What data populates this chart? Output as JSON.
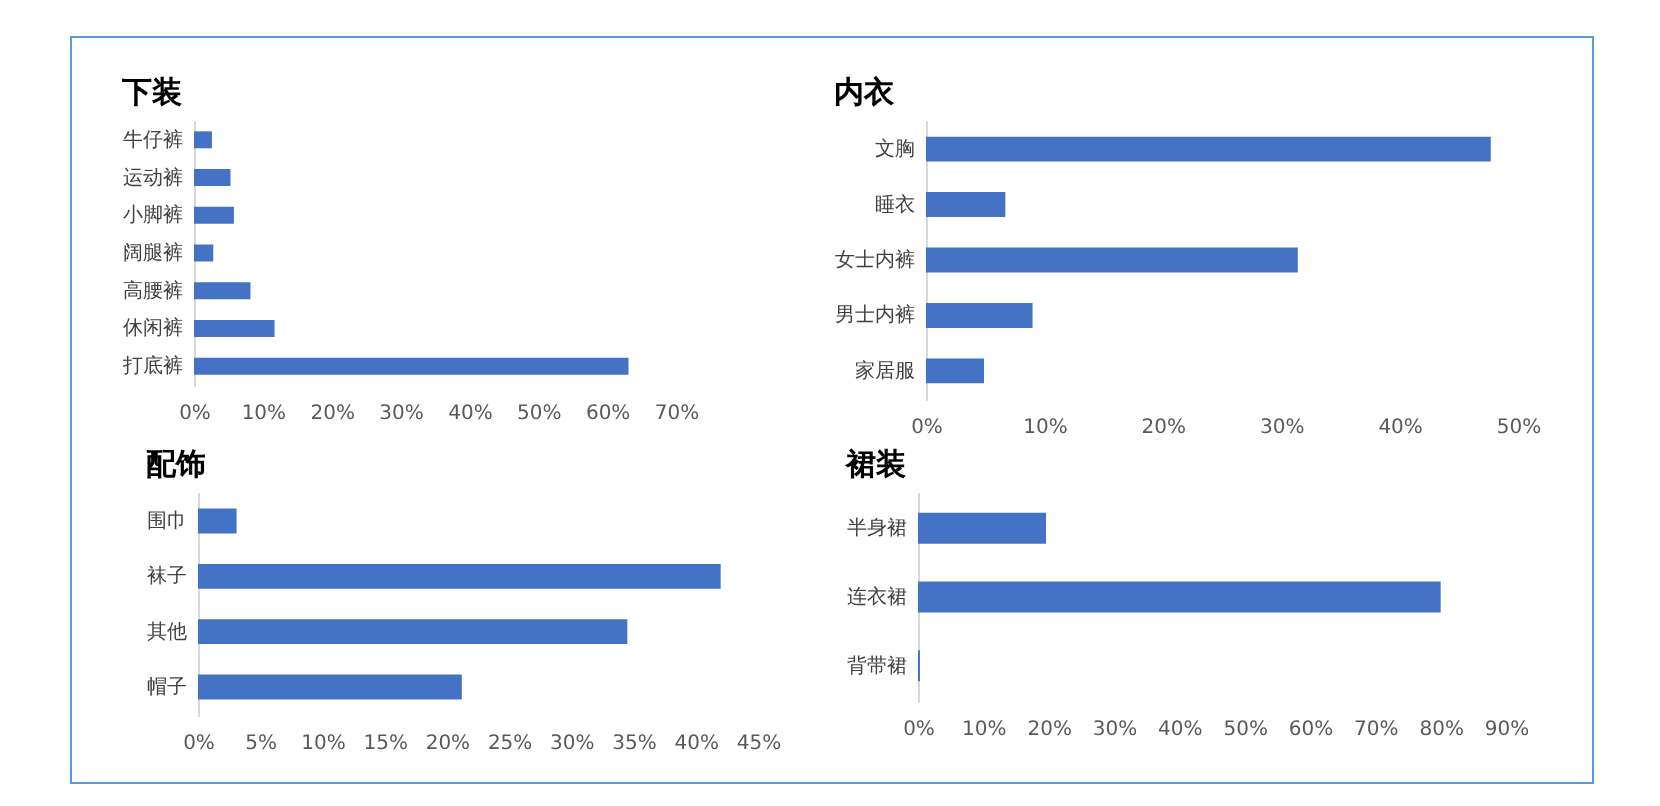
{
  "chart_data": [
    {
      "type": "bar",
      "orientation": "horizontal",
      "title": "下装",
      "categories": [
        "牛仔裤",
        "运动裤",
        "小脚裤",
        "阔腿裤",
        "高腰裤",
        "休闲裤",
        "打底裤"
      ],
      "values": [
        2.6,
        5.3,
        5.8,
        2.8,
        8.2,
        11.7,
        63.1
      ],
      "color": "#4472c4",
      "xlim": [
        0,
        70
      ],
      "xticks": [
        {
          "value": 0,
          "label": "0%"
        },
        {
          "value": 10,
          "label": "10%"
        },
        {
          "value": 20,
          "label": "20%"
        },
        {
          "value": 30,
          "label": "30%"
        },
        {
          "value": 40,
          "label": "40%"
        },
        {
          "value": 50,
          "label": "50%"
        },
        {
          "value": 60,
          "label": "60%"
        },
        {
          "value": 70,
          "label": "70%"
        }
      ]
    },
    {
      "type": "bar",
      "orientation": "horizontal",
      "title": "内衣",
      "categories": [
        "文胸",
        "睡衣",
        "女士内裤",
        "男士内裤",
        "家居服"
      ],
      "values": [
        47.7,
        6.7,
        31.4,
        9.0,
        4.9
      ],
      "color": "#4472c4",
      "xlim": [
        0,
        50
      ],
      "xticks": [
        {
          "value": 0,
          "label": "0%"
        },
        {
          "value": 10,
          "label": "10%"
        },
        {
          "value": 20,
          "label": "20%"
        },
        {
          "value": 30,
          "label": "30%"
        },
        {
          "value": 40,
          "label": "40%"
        },
        {
          "value": 50,
          "label": "50%"
        }
      ]
    },
    {
      "type": "bar",
      "orientation": "horizontal",
      "title": "配饰",
      "categories": [
        "围巾",
        "袜子",
        "其他",
        "帽子"
      ],
      "values": [
        3.1,
        42.0,
        34.5,
        21.2
      ],
      "color": "#4472c4",
      "xlim": [
        0,
        45
      ],
      "xticks": [
        {
          "value": 0,
          "label": "0%"
        },
        {
          "value": 5,
          "label": "5%"
        },
        {
          "value": 10,
          "label": "10%"
        },
        {
          "value": 15,
          "label": "15%"
        },
        {
          "value": 20,
          "label": "20%"
        },
        {
          "value": 25,
          "label": "25%"
        },
        {
          "value": 30,
          "label": "30%"
        },
        {
          "value": 35,
          "label": "35%"
        },
        {
          "value": 40,
          "label": "40%"
        },
        {
          "value": 45,
          "label": "45%"
        }
      ]
    },
    {
      "type": "bar",
      "orientation": "horizontal",
      "title": "裙装",
      "categories": [
        "半身裙",
        "连衣裙",
        "背带裙"
      ],
      "values": [
        19.6,
        80.0,
        0.3
      ],
      "color": "#4472c4",
      "xlim": [
        0,
        90
      ],
      "xticks": [
        {
          "value": 0,
          "label": "0%"
        },
        {
          "value": 10,
          "label": "10%"
        },
        {
          "value": 20,
          "label": "20%"
        },
        {
          "value": 30,
          "label": "30%"
        },
        {
          "value": 40,
          "label": "40%"
        },
        {
          "value": 50,
          "label": "50%"
        },
        {
          "value": 60,
          "label": "60%"
        },
        {
          "value": 70,
          "label": "70%"
        },
        {
          "value": 80,
          "label": "80%"
        },
        {
          "value": 90,
          "label": "90%"
        }
      ]
    }
  ]
}
